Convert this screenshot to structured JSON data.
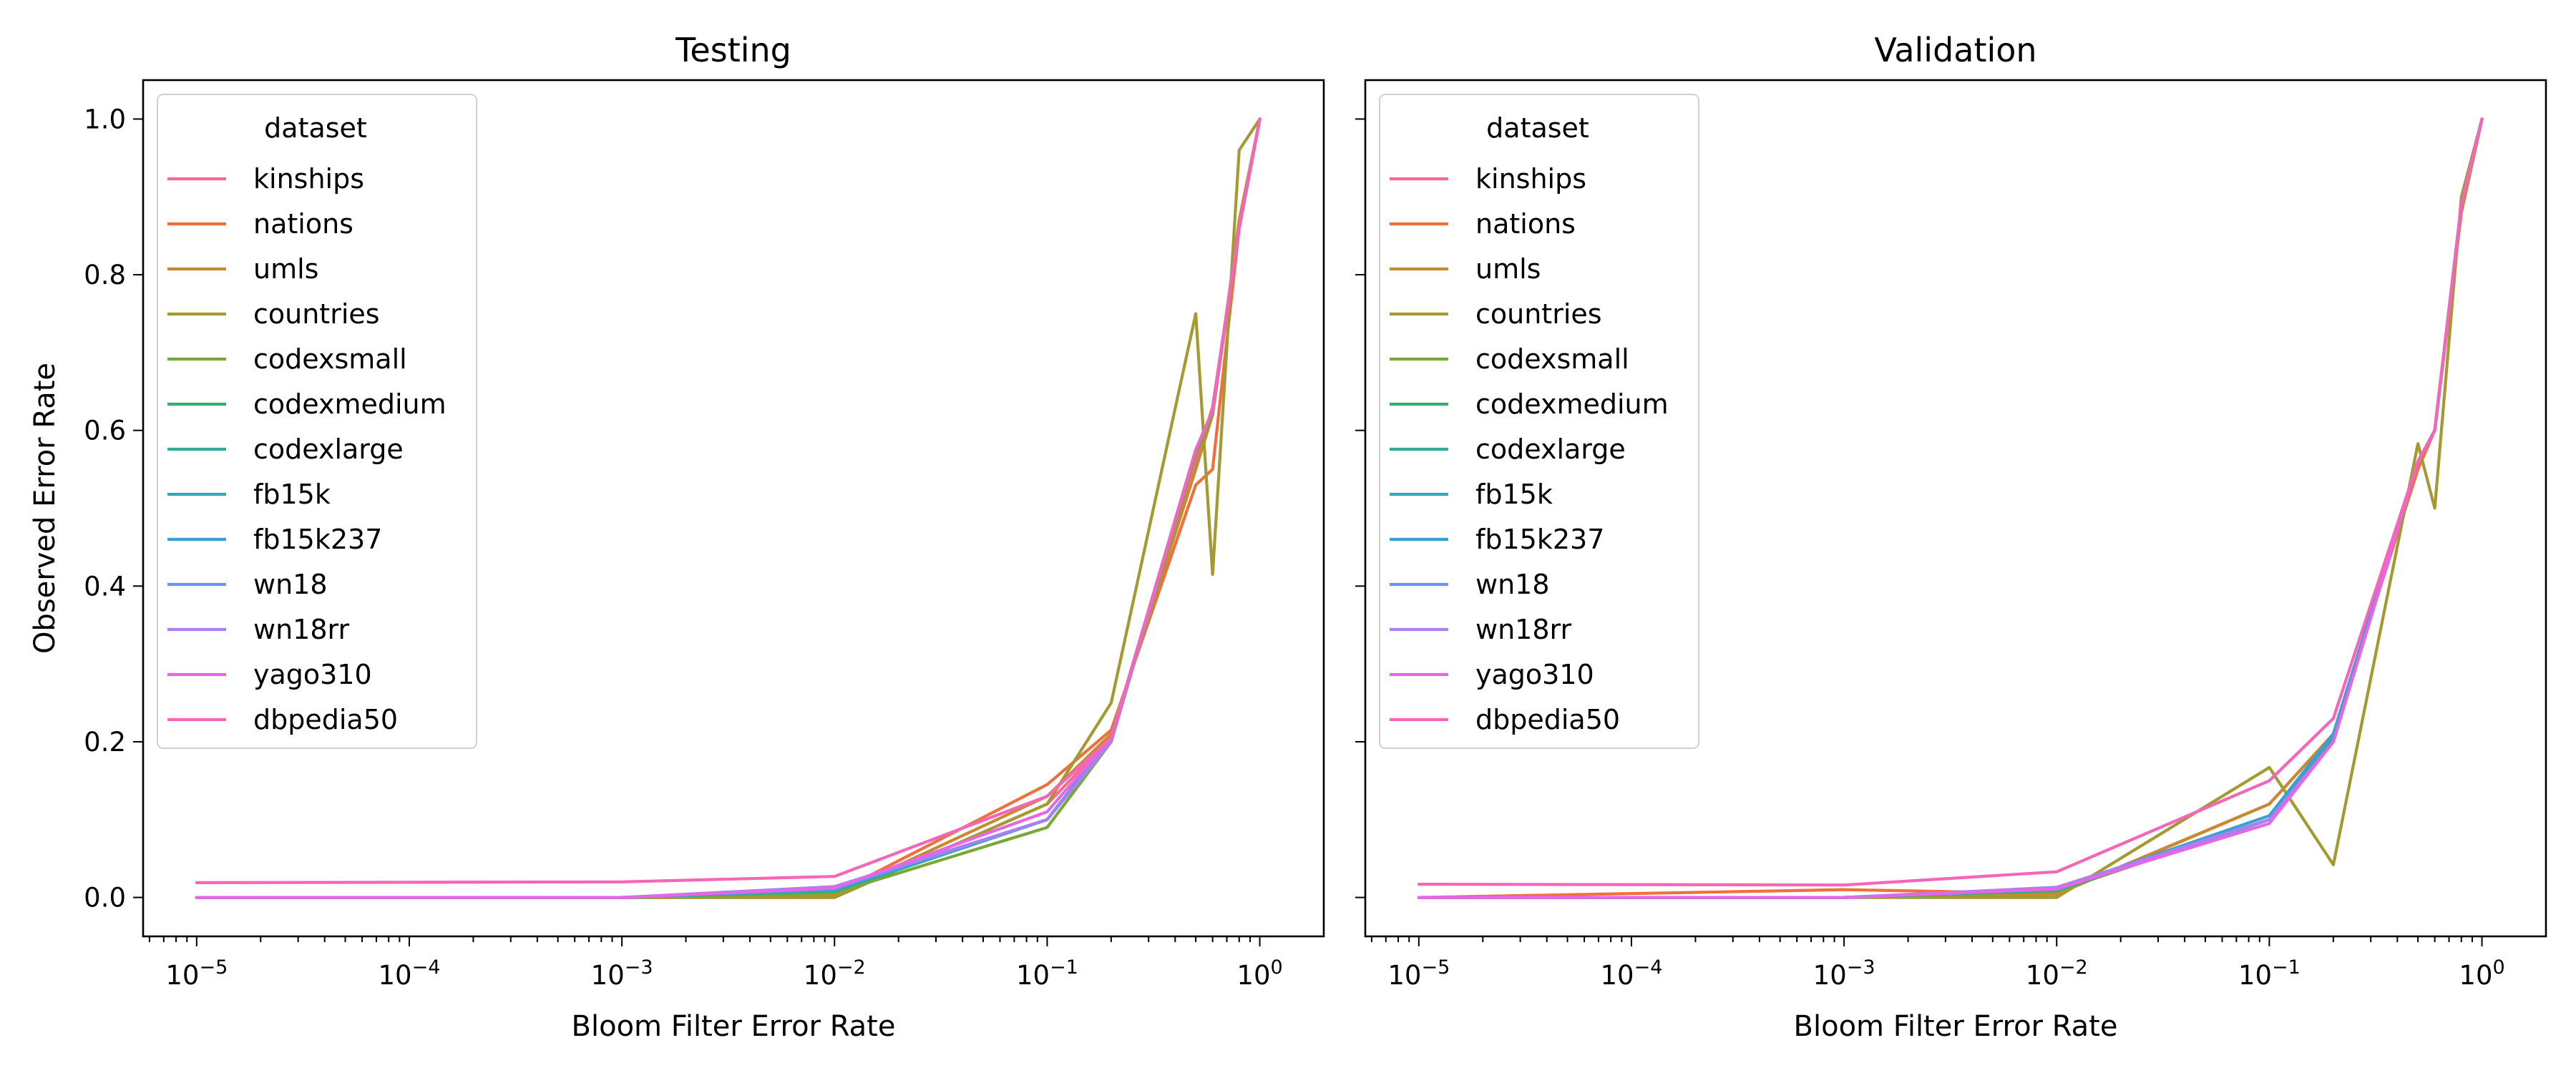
{
  "chart_data": [
    {
      "type": "line",
      "title": "Testing",
      "xlabel": "Bloom Filter Error Rate",
      "ylabel": "Observed Error Rate",
      "xscale": "log",
      "xlim": [
        5.6e-06,
        2.0
      ],
      "ylim": [
        -0.05,
        1.05
      ],
      "xticks": [
        1e-05,
        0.0001,
        0.001,
        0.01,
        0.1,
        1
      ],
      "xtick_labels": [
        "10−5",
        "10−4",
        "10−3",
        "10−2",
        "10−1",
        "100"
      ],
      "yticks": [
        0.0,
        0.2,
        0.4,
        0.6,
        0.8,
        1.0
      ],
      "ytick_labels": [
        "0.0",
        "0.2",
        "0.4",
        "0.6",
        "0.8",
        "1.0"
      ],
      "legend": {
        "title": "dataset",
        "placement": "upper-left"
      },
      "series": [
        {
          "name": "kinships",
          "color": "#f7698f",
          "x": [
            1e-05,
            0.001,
            0.01,
            0.1,
            0.2,
            0.5,
            0.6,
            0.8,
            1.0
          ],
          "y": [
            0.0,
            0.0,
            0.0,
            0.12,
            0.205,
            0.56,
            0.63,
            0.86,
            1.0
          ]
        },
        {
          "name": "nations",
          "color": "#f0703b",
          "x": [
            1e-05,
            0.001,
            0.01,
            0.1,
            0.2,
            0.5,
            0.6,
            0.8,
            1.0
          ],
          "y": [
            0.0,
            0.0,
            0.005,
            0.145,
            0.215,
            0.53,
            0.55,
            0.86,
            1.0
          ]
        },
        {
          "name": "umls",
          "color": "#c88a2f",
          "x": [
            1e-05,
            0.001,
            0.01,
            0.1,
            0.2,
            0.5,
            0.6,
            0.8,
            1.0
          ],
          "y": [
            0.0,
            0.0,
            0.003,
            0.13,
            0.21,
            0.55,
            0.62,
            0.87,
            1.0
          ]
        },
        {
          "name": "countries",
          "color": "#a39b31",
          "x": [
            1e-05,
            0.001,
            0.01,
            0.1,
            0.2,
            0.5,
            0.6,
            0.8,
            1.0
          ],
          "y": [
            0.0,
            0.0,
            0.0,
            0.12,
            0.25,
            0.75,
            0.415,
            0.96,
            1.0
          ]
        },
        {
          "name": "codexsmall",
          "color": "#78a83a",
          "x": [
            1e-05,
            0.001,
            0.01,
            0.1,
            0.2,
            0.5,
            0.6,
            0.8,
            1.0
          ],
          "y": [
            0.0,
            0.0,
            0.006,
            0.09,
            0.2,
            0.57,
            0.62,
            0.86,
            1.0
          ]
        },
        {
          "name": "codexmedium",
          "color": "#36ac6d",
          "x": [
            1e-05,
            0.001,
            0.01,
            0.1,
            0.2,
            0.5,
            0.6,
            0.8,
            1.0
          ],
          "y": [
            0.0,
            0.0,
            0.008,
            0.1,
            0.205,
            0.575,
            0.625,
            0.86,
            1.0
          ]
        },
        {
          "name": "codexlarge",
          "color": "#33ab9a",
          "x": [
            1e-05,
            0.001,
            0.01,
            0.1,
            0.2,
            0.5,
            0.6,
            0.8,
            1.0
          ],
          "y": [
            0.0,
            0.0,
            0.009,
            0.1,
            0.205,
            0.575,
            0.625,
            0.86,
            1.0
          ]
        },
        {
          "name": "fb15k",
          "color": "#36a7b5",
          "x": [
            1e-05,
            0.001,
            0.01,
            0.1,
            0.2,
            0.5,
            0.6,
            0.8,
            1.0
          ],
          "y": [
            0.0,
            0.0,
            0.01,
            0.1,
            0.205,
            0.575,
            0.625,
            0.86,
            1.0
          ]
        },
        {
          "name": "fb15k237",
          "color": "#3aa0d4",
          "x": [
            1e-05,
            0.001,
            0.01,
            0.1,
            0.2,
            0.5,
            0.6,
            0.8,
            1.0
          ],
          "y": [
            0.0,
            0.0,
            0.01,
            0.1,
            0.205,
            0.575,
            0.625,
            0.86,
            1.0
          ]
        },
        {
          "name": "wn18",
          "color": "#6d93f2",
          "x": [
            1e-05,
            0.001,
            0.01,
            0.1,
            0.2,
            0.5,
            0.6,
            0.8,
            1.0
          ],
          "y": [
            0.0,
            0.0,
            0.012,
            0.1,
            0.2,
            0.575,
            0.625,
            0.86,
            1.0
          ]
        },
        {
          "name": "wn18rr",
          "color": "#a880f0",
          "x": [
            1e-05,
            0.001,
            0.01,
            0.1,
            0.2,
            0.5,
            0.6,
            0.8,
            1.0
          ],
          "y": [
            0.0,
            0.0,
            0.014,
            0.1,
            0.2,
            0.575,
            0.625,
            0.86,
            1.0
          ]
        },
        {
          "name": "yago310",
          "color": "#e865e8",
          "x": [
            1e-05,
            0.001,
            0.01,
            0.1,
            0.2,
            0.5,
            0.6,
            0.8,
            1.0
          ],
          "y": [
            0.0,
            0.0,
            0.012,
            0.11,
            0.205,
            0.575,
            0.625,
            0.86,
            1.0
          ]
        },
        {
          "name": "dbpedia50",
          "color": "#f565b8",
          "x": [
            1e-05,
            0.001,
            0.01,
            0.1,
            0.2,
            0.5,
            0.6,
            0.8,
            1.0
          ],
          "y": [
            0.019,
            0.02,
            0.027,
            0.13,
            0.205,
            0.575,
            0.625,
            0.86,
            1.0
          ]
        }
      ]
    },
    {
      "type": "line",
      "title": "Validation",
      "xlabel": "Bloom Filter Error Rate",
      "ylabel": "",
      "xscale": "log",
      "xlim": [
        5.6e-06,
        2.0
      ],
      "ylim": [
        -0.05,
        1.05
      ],
      "xticks": [
        1e-05,
        0.0001,
        0.001,
        0.01,
        0.1,
        1
      ],
      "xtick_labels": [
        "10−5",
        "10−4",
        "10−3",
        "10−2",
        "10−1",
        "100"
      ],
      "yticks": [
        0.0,
        0.2,
        0.4,
        0.6,
        0.8,
        1.0
      ],
      "ytick_labels": [
        "",
        "",
        "",
        "",
        "",
        ""
      ],
      "legend": {
        "title": "dataset",
        "placement": "upper-left"
      },
      "series": [
        {
          "name": "kinships",
          "color": "#f7698f",
          "x": [
            1e-05,
            0.001,
            0.01,
            0.1,
            0.2,
            0.5,
            0.6,
            0.8,
            1.0
          ],
          "y": [
            0.0,
            0.0,
            0.008,
            0.1,
            0.21,
            0.56,
            0.6,
            0.89,
            1.0
          ]
        },
        {
          "name": "nations",
          "color": "#f0703b",
          "x": [
            1e-05,
            0.001,
            0.01,
            0.1,
            0.2,
            0.5,
            0.6,
            0.8,
            1.0
          ],
          "y": [
            0.0,
            0.01,
            0.005,
            0.12,
            0.21,
            0.55,
            0.6,
            0.88,
            1.0
          ]
        },
        {
          "name": "umls",
          "color": "#c88a2f",
          "x": [
            1e-05,
            0.001,
            0.01,
            0.1,
            0.2,
            0.5,
            0.6,
            0.8,
            1.0
          ],
          "y": [
            0.0,
            0.0,
            0.004,
            0.12,
            0.21,
            0.56,
            0.6,
            0.88,
            1.0
          ]
        },
        {
          "name": "countries",
          "color": "#a39b31",
          "x": [
            1e-05,
            0.001,
            0.01,
            0.1,
            0.2,
            0.5,
            0.6,
            0.8,
            1.0
          ],
          "y": [
            0.0,
            0.0,
            0.0,
            0.167,
            0.042,
            0.583,
            0.5,
            0.9,
            1.0
          ]
        },
        {
          "name": "codexsmall",
          "color": "#78a83a",
          "x": [
            1e-05,
            0.001,
            0.01,
            0.1,
            0.2,
            0.5,
            0.6,
            0.8,
            1.0
          ],
          "y": [
            0.0,
            0.0,
            0.008,
            0.1,
            0.2,
            0.56,
            0.6,
            0.89,
            1.0
          ]
        },
        {
          "name": "codexmedium",
          "color": "#36ac6d",
          "x": [
            1e-05,
            0.001,
            0.01,
            0.1,
            0.2,
            0.5,
            0.6,
            0.8,
            1.0
          ],
          "y": [
            0.0,
            0.0,
            0.009,
            0.1,
            0.205,
            0.56,
            0.6,
            0.89,
            1.0
          ]
        },
        {
          "name": "codexlarge",
          "color": "#33ab9a",
          "x": [
            1e-05,
            0.001,
            0.01,
            0.1,
            0.2,
            0.5,
            0.6,
            0.8,
            1.0
          ],
          "y": [
            0.0,
            0.0,
            0.01,
            0.1,
            0.205,
            0.56,
            0.6,
            0.89,
            1.0
          ]
        },
        {
          "name": "fb15k",
          "color": "#36a7b5",
          "x": [
            1e-05,
            0.001,
            0.01,
            0.1,
            0.2,
            0.5,
            0.6,
            0.8,
            1.0
          ],
          "y": [
            0.0,
            0.0,
            0.01,
            0.1,
            0.21,
            0.56,
            0.6,
            0.89,
            1.0
          ]
        },
        {
          "name": "fb15k237",
          "color": "#3aa0d4",
          "x": [
            1e-05,
            0.001,
            0.01,
            0.1,
            0.2,
            0.5,
            0.6,
            0.8,
            1.0
          ],
          "y": [
            0.0,
            0.0,
            0.011,
            0.105,
            0.21,
            0.56,
            0.6,
            0.89,
            1.0
          ]
        },
        {
          "name": "wn18",
          "color": "#6d93f2",
          "x": [
            1e-05,
            0.001,
            0.01,
            0.1,
            0.2,
            0.5,
            0.6,
            0.8,
            1.0
          ],
          "y": [
            0.0,
            0.0,
            0.012,
            0.1,
            0.2,
            0.56,
            0.6,
            0.89,
            1.0
          ]
        },
        {
          "name": "wn18rr",
          "color": "#a880f0",
          "x": [
            1e-05,
            0.001,
            0.01,
            0.1,
            0.2,
            0.5,
            0.6,
            0.8,
            1.0
          ],
          "y": [
            0.0,
            0.0,
            0.013,
            0.1,
            0.2,
            0.56,
            0.6,
            0.89,
            1.0
          ]
        },
        {
          "name": "yago310",
          "color": "#e865e8",
          "x": [
            1e-05,
            0.001,
            0.01,
            0.1,
            0.2,
            0.5,
            0.6,
            0.8,
            1.0
          ],
          "y": [
            0.0,
            0.0,
            0.011,
            0.095,
            0.2,
            0.56,
            0.6,
            0.89,
            1.0
          ]
        },
        {
          "name": "dbpedia50",
          "color": "#f565b8",
          "x": [
            1e-05,
            0.001,
            0.01,
            0.1,
            0.2,
            0.5,
            0.6,
            0.8,
            1.0
          ],
          "y": [
            0.017,
            0.016,
            0.033,
            0.15,
            0.23,
            0.56,
            0.6,
            0.89,
            1.0
          ]
        }
      ]
    }
  ]
}
